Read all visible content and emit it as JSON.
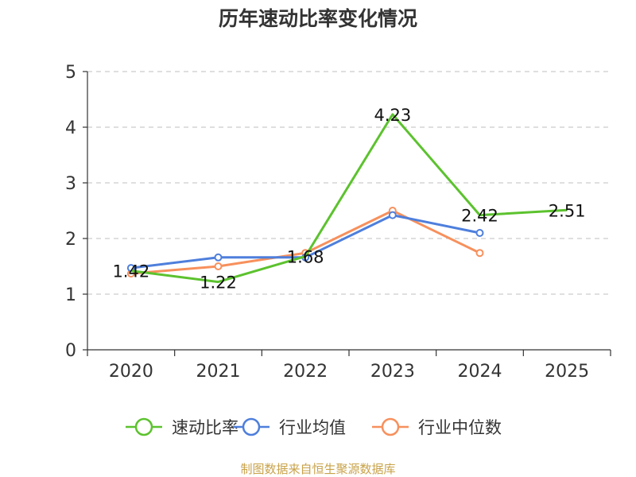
{
  "chart_data": {
    "type": "line",
    "title": "历年速动比率变化情况",
    "categories": [
      "2020",
      "2021",
      "2022",
      "2023",
      "2024",
      "2025"
    ],
    "ylim": [
      0,
      5
    ],
    "yticks": [
      0,
      1,
      2,
      3,
      4,
      5
    ],
    "grid": true,
    "legend_position": "bottom",
    "series": [
      {
        "name": "速动比率",
        "color": "#5cc22e",
        "values": [
          1.42,
          1.22,
          1.68,
          4.23,
          2.42,
          2.51
        ],
        "show_labels": true,
        "show_markers": false
      },
      {
        "name": "行业均值",
        "color": "#4e7fdc",
        "values": [
          1.47,
          1.66,
          1.66,
          2.42,
          2.1,
          null
        ],
        "show_labels": false,
        "show_markers": true
      },
      {
        "name": "行业中位数",
        "color": "#f7905c",
        "values": [
          1.37,
          1.5,
          1.74,
          2.5,
          1.74,
          null
        ],
        "show_labels": false,
        "show_markers": true
      }
    ]
  },
  "source": "制图数据来自恒生聚源数据库"
}
